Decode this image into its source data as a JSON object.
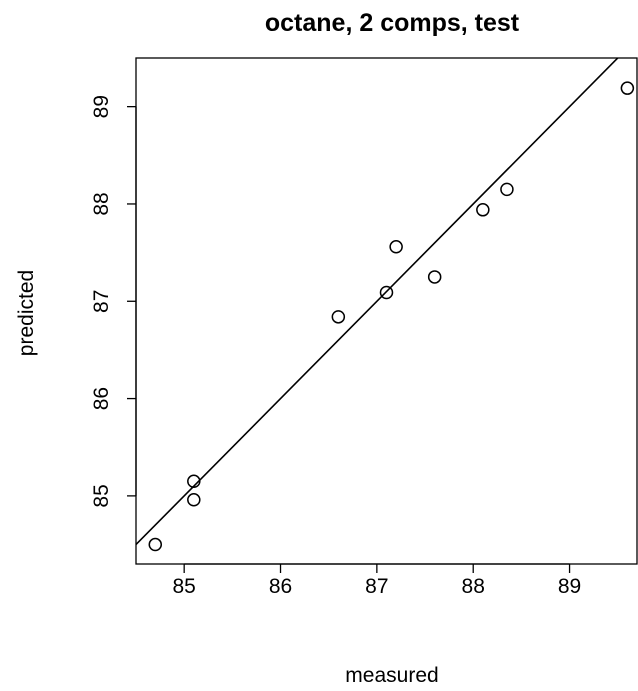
{
  "chart_data": {
    "type": "scatter",
    "title": "octane, 2 comps, test",
    "xlabel": "measured",
    "ylabel": "predicted",
    "xlim": [
      84.5,
      89.7
    ],
    "ylim": [
      84.3,
      89.5
    ],
    "x_ticks": [
      85,
      86,
      87,
      88,
      89
    ],
    "y_ticks": [
      85,
      86,
      87,
      88,
      89
    ],
    "x_tick_labels": [
      "85",
      "86",
      "87",
      "88",
      "89"
    ],
    "y_tick_labels": [
      "85",
      "86",
      "87",
      "88",
      "89"
    ],
    "grid": false,
    "legend": false,
    "points": [
      {
        "x": 84.7,
        "y": 84.5
      },
      {
        "x": 85.1,
        "y": 84.96
      },
      {
        "x": 85.1,
        "y": 85.15
      },
      {
        "x": 86.6,
        "y": 86.84
      },
      {
        "x": 87.1,
        "y": 87.09
      },
      {
        "x": 87.2,
        "y": 87.56
      },
      {
        "x": 87.6,
        "y": 87.25
      },
      {
        "x": 88.1,
        "y": 87.94
      },
      {
        "x": 88.35,
        "y": 88.15
      },
      {
        "x": 89.6,
        "y": 89.19
      }
    ],
    "reference_line": {
      "type": "y=x",
      "description": ""
    }
  }
}
